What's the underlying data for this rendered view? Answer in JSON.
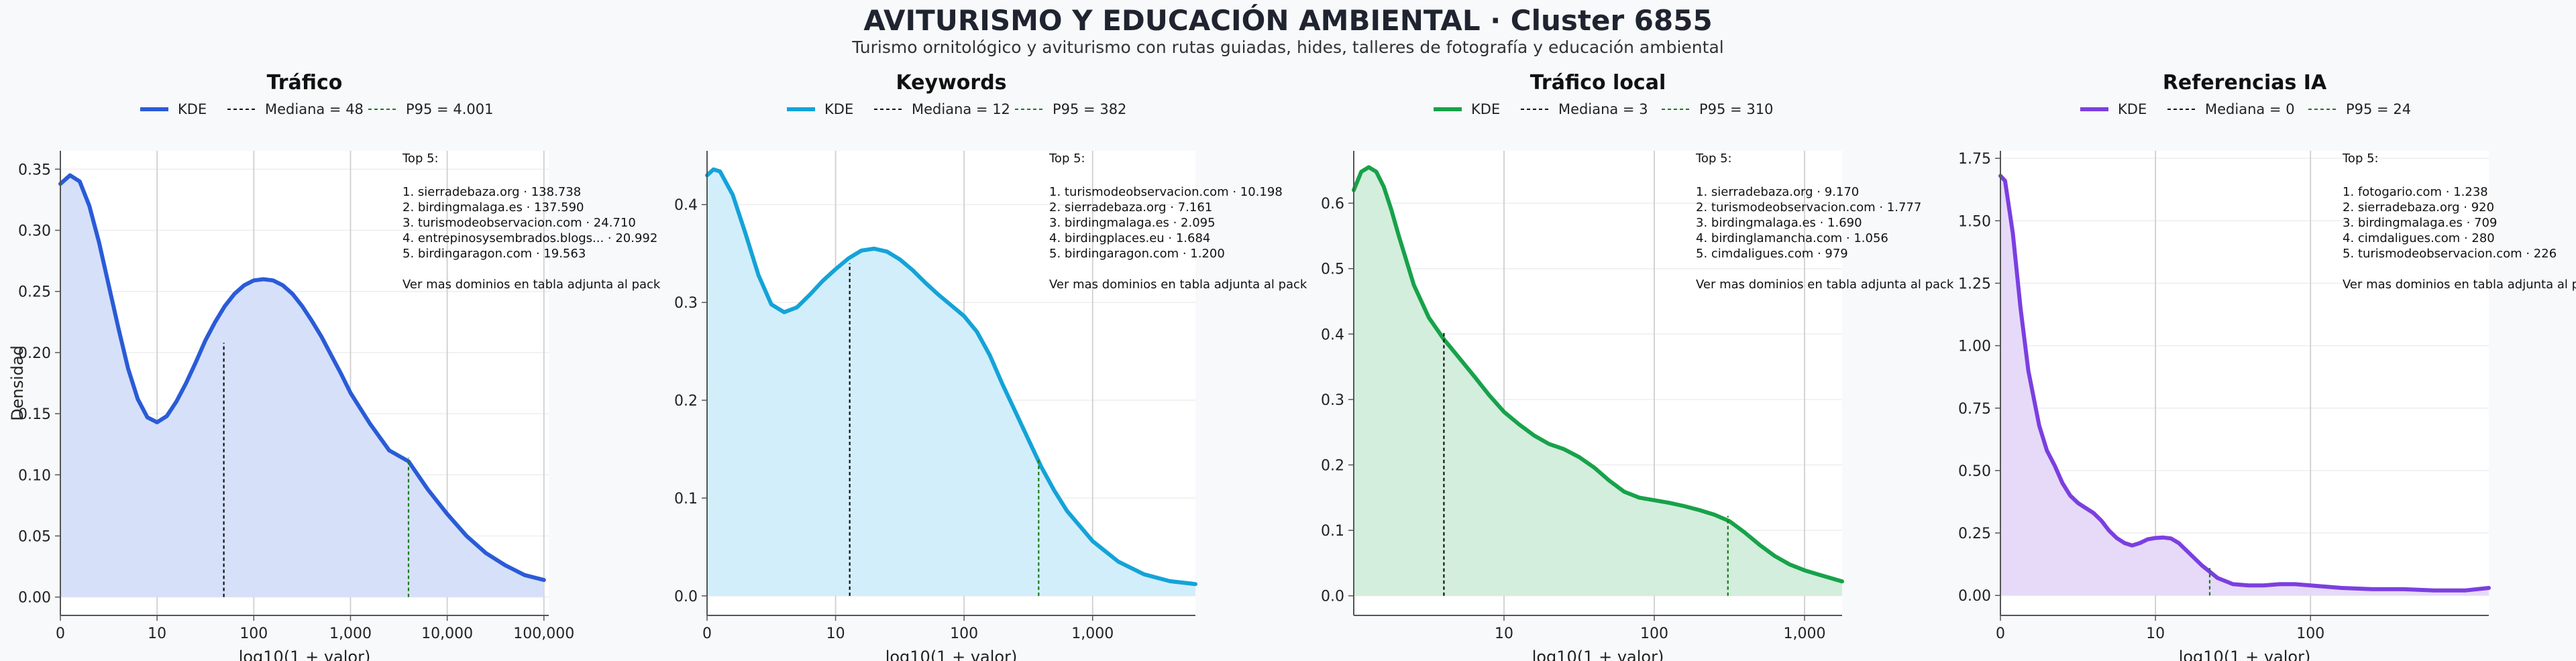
{
  "title": "AVITURISMO Y EDUCACIÓN AMBIENTAL · Cluster 6855",
  "subtitle": "Turismo ornitológico y aviturismo con rutas guiadas, hides, talleres de fotografía y educación ambiental",
  "legend_kde": "KDE",
  "ylabel": "Densidad",
  "colors": {
    "grid": "#cfcfcf",
    "median_line": "#111111",
    "p95_line": "#1a7a1a",
    "plot_bg": "#ffffff"
  },
  "chart_data": [
    {
      "type": "area",
      "title": "Tráfico",
      "color": "#2a5bd7",
      "fill": "#d6e0f8",
      "xlabel": "log10(1 + valor)",
      "ylabel": "Densidad",
      "x_scale": "log10(1+x)",
      "xlim": [
        0,
        5.05
      ],
      "ylim": [
        -0.015,
        0.365
      ],
      "x_ticks": [
        {
          "v": 0,
          "label": "0"
        },
        {
          "v": 1,
          "label": "10"
        },
        {
          "v": 2,
          "label": "100"
        },
        {
          "v": 3,
          "label": "1,000"
        },
        {
          "v": 4,
          "label": "10,000"
        },
        {
          "v": 5,
          "label": "100,000"
        }
      ],
      "y_ticks": [
        0,
        0.05,
        0.1,
        0.15,
        0.2,
        0.25,
        0.3,
        0.35
      ],
      "y_tick_labels": [
        "0.00",
        "0.05",
        "0.10",
        "0.15",
        "0.20",
        "0.25",
        "0.30",
        "0.35"
      ],
      "median": {
        "label": "Mediana = 48",
        "x": 1.69,
        "y": 0.208
      },
      "p95": {
        "label": "P95 = 4.001",
        "x": 3.6,
        "y": 0.114
      },
      "kde": {
        "x": [
          0,
          0.1,
          0.2,
          0.3,
          0.4,
          0.5,
          0.6,
          0.7,
          0.8,
          0.9,
          1.0,
          1.1,
          1.2,
          1.3,
          1.4,
          1.5,
          1.6,
          1.7,
          1.8,
          1.9,
          2.0,
          2.1,
          2.2,
          2.3,
          2.4,
          2.5,
          2.6,
          2.7,
          2.8,
          2.9,
          3.0,
          3.2,
          3.4,
          3.6,
          3.8,
          4.0,
          4.2,
          4.4,
          4.6,
          4.8,
          5.0
        ],
        "y": [
          0.338,
          0.345,
          0.34,
          0.32,
          0.29,
          0.255,
          0.22,
          0.187,
          0.162,
          0.147,
          0.143,
          0.148,
          0.16,
          0.175,
          0.192,
          0.21,
          0.225,
          0.238,
          0.248,
          0.255,
          0.259,
          0.26,
          0.259,
          0.255,
          0.248,
          0.238,
          0.226,
          0.213,
          0.198,
          0.183,
          0.167,
          0.142,
          0.12,
          0.111,
          0.088,
          0.068,
          0.05,
          0.036,
          0.026,
          0.018,
          0.014
        ]
      },
      "top5_header": "Top 5:",
      "top5": [
        "1. sierradebaza.org · 138.738",
        "2. birdingmalaga.es · 137.590",
        "3. turismodeobservacion.com · 24.710",
        "4. entrepinosysembrados.blogs... · 20.992",
        "5. birdingaragon.com · 19.563"
      ],
      "footer_note": "Ver mas dominios en tabla adjunta al pack"
    },
    {
      "type": "area",
      "title": "Keywords",
      "color": "#14a3d8",
      "fill": "#d2eefa",
      "xlabel": "log10(1 + valor)",
      "ylabel": "",
      "x_scale": "log10(1+x)",
      "xlim": [
        0,
        3.8
      ],
      "ylim": [
        -0.02,
        0.455
      ],
      "x_ticks": [
        {
          "v": 0,
          "label": "0"
        },
        {
          "v": 1,
          "label": "10"
        },
        {
          "v": 2,
          "label": "100"
        },
        {
          "v": 3,
          "label": "1,000"
        }
      ],
      "y_ticks": [
        0,
        0.1,
        0.2,
        0.3,
        0.4
      ],
      "y_tick_labels": [
        "0.0",
        "0.1",
        "0.2",
        "0.3",
        "0.4"
      ],
      "median": {
        "label": "Mediana = 12",
        "x": 1.11,
        "y": 0.34
      },
      "p95": {
        "label": "P95 = 382",
        "x": 2.58,
        "y": 0.14
      },
      "kde": {
        "x": [
          0,
          0.05,
          0.1,
          0.2,
          0.3,
          0.4,
          0.5,
          0.6,
          0.7,
          0.8,
          0.9,
          1.0,
          1.1,
          1.2,
          1.3,
          1.4,
          1.5,
          1.6,
          1.7,
          1.8,
          1.9,
          2.0,
          2.1,
          2.2,
          2.3,
          2.4,
          2.5,
          2.6,
          2.7,
          2.8,
          3.0,
          3.2,
          3.4,
          3.6,
          3.8
        ],
        "y": [
          0.43,
          0.436,
          0.434,
          0.41,
          0.37,
          0.328,
          0.298,
          0.29,
          0.295,
          0.308,
          0.322,
          0.334,
          0.345,
          0.353,
          0.355,
          0.352,
          0.344,
          0.333,
          0.32,
          0.308,
          0.297,
          0.286,
          0.27,
          0.246,
          0.216,
          0.188,
          0.16,
          0.132,
          0.108,
          0.087,
          0.056,
          0.035,
          0.022,
          0.015,
          0.012
        ]
      },
      "top5_header": "Top 5:",
      "top5": [
        "1. turismodeobservacion.com · 10.198",
        "2. sierradebaza.org · 7.161",
        "3. birdingmalaga.es · 2.095",
        "4. birdingplaces.eu · 1.684",
        "5. birdingaragon.com · 1.200"
      ],
      "footer_note": "Ver mas dominios en tabla adjunta al pack"
    },
    {
      "type": "area",
      "title": "Tráfico local",
      "color": "#17a24a",
      "fill": "#d3eedc",
      "xlabel": "log10(1 + valor)",
      "ylabel": "",
      "x_scale": "log10(1+x)",
      "xlim": [
        0,
        3.25
      ],
      "ylim": [
        -0.03,
        0.68
      ],
      "x_ticks": [
        {
          "v": 1,
          "label": "10"
        },
        {
          "v": 2,
          "label": "100"
        },
        {
          "v": 3,
          "label": "1,000"
        }
      ],
      "y_ticks": [
        0,
        0.1,
        0.2,
        0.3,
        0.4,
        0.5,
        0.6
      ],
      "y_tick_labels": [
        "0.0",
        "0.1",
        "0.2",
        "0.3",
        "0.4",
        "0.5",
        "0.6"
      ],
      "median": {
        "label": "Mediana = 3",
        "x": 0.6,
        "y": 0.405
      },
      "p95": {
        "label": "P95 = 310",
        "x": 2.49,
        "y": 0.122
      },
      "kde": {
        "x": [
          0,
          0.05,
          0.1,
          0.15,
          0.2,
          0.25,
          0.3,
          0.4,
          0.5,
          0.6,
          0.7,
          0.8,
          0.9,
          1.0,
          1.1,
          1.2,
          1.3,
          1.4,
          1.5,
          1.6,
          1.7,
          1.8,
          1.9,
          2.0,
          2.1,
          2.2,
          2.3,
          2.4,
          2.5,
          2.6,
          2.7,
          2.8,
          2.9,
          3.0,
          3.1,
          3.25
        ],
        "y": [
          0.62,
          0.648,
          0.655,
          0.648,
          0.625,
          0.59,
          0.55,
          0.475,
          0.425,
          0.392,
          0.364,
          0.336,
          0.307,
          0.281,
          0.262,
          0.245,
          0.232,
          0.224,
          0.212,
          0.196,
          0.176,
          0.159,
          0.15,
          0.146,
          0.142,
          0.137,
          0.131,
          0.124,
          0.114,
          0.097,
          0.078,
          0.061,
          0.048,
          0.039,
          0.032,
          0.022
        ]
      },
      "top5_header": "Top 5:",
      "top5": [
        "1. sierradebaza.org · 9.170",
        "2. turismodeobservacion.com · 1.777",
        "3. birdingmalaga.es · 1.690",
        "4. birdinglamancha.com · 1.056",
        "5. cimdaligues.com · 979"
      ],
      "footer_note": "Ver mas dominios en tabla adjunta al pack"
    },
    {
      "type": "area",
      "title": "Referencias IA",
      "color": "#7b3fe0",
      "fill": "#e6daf8",
      "xlabel": "log10(1 + valor)",
      "ylabel": "",
      "x_scale": "log10(1+x)",
      "xlim": [
        0,
        3.15
      ],
      "ylim": [
        -0.08,
        1.78
      ],
      "x_ticks": [
        {
          "v": 0,
          "label": "0"
        },
        {
          "v": 1,
          "label": "10"
        },
        {
          "v": 2,
          "label": "100"
        }
      ],
      "y_ticks": [
        0,
        0.25,
        0.5,
        0.75,
        1.0,
        1.25,
        1.5,
        1.75
      ],
      "y_tick_labels": [
        "0.00",
        "0.25",
        "0.50",
        "0.75",
        "1.00",
        "1.25",
        "1.50",
        "1.75"
      ],
      "median": {
        "label": "Mediana = 0",
        "x": 0,
        "y": 1.68
      },
      "p95": {
        "label": "P95 = 24",
        "x": 1.35,
        "y": 0.12
      },
      "kde": {
        "x": [
          0,
          0.03,
          0.08,
          0.13,
          0.18,
          0.25,
          0.3,
          0.35,
          0.4,
          0.45,
          0.5,
          0.55,
          0.6,
          0.65,
          0.7,
          0.75,
          0.8,
          0.85,
          0.9,
          0.95,
          1.0,
          1.05,
          1.1,
          1.15,
          1.2,
          1.3,
          1.4,
          1.5,
          1.6,
          1.7,
          1.8,
          1.9,
          2.0,
          2.2,
          2.4,
          2.6,
          2.8,
          3.0,
          3.15
        ],
        "y": [
          1.68,
          1.66,
          1.45,
          1.15,
          0.9,
          0.68,
          0.58,
          0.52,
          0.45,
          0.4,
          0.37,
          0.35,
          0.33,
          0.3,
          0.26,
          0.23,
          0.21,
          0.2,
          0.21,
          0.225,
          0.23,
          0.232,
          0.228,
          0.21,
          0.18,
          0.12,
          0.07,
          0.045,
          0.04,
          0.04,
          0.045,
          0.045,
          0.04,
          0.03,
          0.025,
          0.025,
          0.02,
          0.02,
          0.03
        ]
      },
      "top5_header": "Top 5:",
      "top5": [
        "1. fotogario.com · 1.238",
        "2. sierradebaza.org · 920",
        "3. birdingmalaga.es · 709",
        "4. cimdaligues.com · 280",
        "5. turismodeobservacion.com · 226"
      ],
      "footer_note": "Ver mas dominios en tabla adjunta al pack"
    }
  ]
}
